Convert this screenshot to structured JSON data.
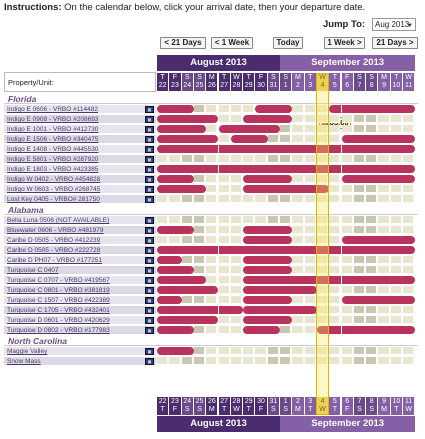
{
  "instructions": {
    "label": "Instructions:",
    "text": "On the calendar below, click your arrival date, then your departure date."
  },
  "jump": {
    "label": "Jump To:",
    "selected": "Aug 2013"
  },
  "nav": {
    "prev_21": "< 21 Days",
    "prev_week": "< 1 Week",
    "today": "Today",
    "next_week": "1 Week >",
    "next_21": "21 Days >"
  },
  "months": [
    "August 2013",
    "September 2013"
  ],
  "property_header": "Property/Unit:",
  "tooltip_price": "$285.00",
  "days": [
    {
      "dow": "T",
      "d": "22"
    },
    {
      "dow": "F",
      "d": "23"
    },
    {
      "dow": "S",
      "d": "24"
    },
    {
      "dow": "S",
      "d": "25"
    },
    {
      "dow": "M",
      "d": "26"
    },
    {
      "dow": "T",
      "d": "27"
    },
    {
      "dow": "W",
      "d": "28"
    },
    {
      "dow": "T",
      "d": "29"
    },
    {
      "dow": "F",
      "d": "30"
    },
    {
      "dow": "S",
      "d": "31"
    },
    {
      "dow": "S",
      "d": "1"
    },
    {
      "dow": "M",
      "d": "2"
    },
    {
      "dow": "T",
      "d": "3"
    },
    {
      "dow": "W",
      "d": "4"
    },
    {
      "dow": "T",
      "d": "5"
    },
    {
      "dow": "F",
      "d": "6"
    },
    {
      "dow": "S",
      "d": "7"
    },
    {
      "dow": "S",
      "d": "8"
    },
    {
      "dow": "M",
      "d": "9"
    },
    {
      "dow": "T",
      "d": "10"
    },
    {
      "dow": "W",
      "d": "11"
    }
  ],
  "regions": [
    {
      "name": "Florida",
      "properties": [
        {
          "name": "Indigo E 0606 - VRBO #114482",
          "booked": [
            [
              0,
              2
            ],
            [
              8,
              10
            ],
            [
              14,
              20
            ]
          ]
        },
        {
          "name": "Indigo E 0908 - VRBO #208693",
          "booked": [
            [
              0,
              4
            ],
            [
              7,
              10
            ]
          ]
        },
        {
          "name": "Indigo E 1001 - VRBO #412730",
          "booked": [
            [
              0,
              3
            ],
            [
              5,
              9
            ]
          ]
        },
        {
          "name": "Indigo E 1506 - VRBO #340475",
          "booked": [
            [
              0,
              4
            ],
            [
              6,
              8
            ],
            [
              15,
              20
            ]
          ]
        },
        {
          "name": "Indigo E 1408 - VRBO #445530",
          "booked": [
            [
              0,
              20
            ]
          ]
        },
        {
          "name": "Indigo E 5801 - VRBO #287920",
          "booked": []
        },
        {
          "name": "Indigo E 1803 - VRBO #423385",
          "booked": [
            [
              0,
              20
            ]
          ]
        },
        {
          "name": "Indigo W 0402 - VRBO #454828",
          "booked": [
            [
              0,
              2
            ],
            [
              7,
              10
            ],
            [
              15,
              20
            ]
          ]
        },
        {
          "name": "Indigo W 0603 - VRBO #268745",
          "booked": [
            [
              0,
              3
            ],
            [
              7,
              13
            ]
          ]
        },
        {
          "name": "Lost Key 0405 - VRBO# 281750",
          "booked": []
        }
      ]
    },
    {
      "name": "Alabama",
      "properties": [
        {
          "name": "Bella Luna 0506 (NOT AVAILABLE)",
          "booked": []
        },
        {
          "name": "Bluewater 0606 - VRBO #481979",
          "booked": [
            [
              0,
              2
            ],
            [
              7,
              10
            ]
          ]
        },
        {
          "name": "Caribe D 0505 - VRBO #412239",
          "booked": [
            [
              7,
              10
            ],
            [
              15,
              20
            ]
          ]
        },
        {
          "name": "Caribe D 0505 - VRBO #222728",
          "booked": [
            [
              0,
              20
            ]
          ]
        },
        {
          "name": "Caribe D PH07 - VRBO #177251",
          "booked": [
            [
              0,
              1
            ],
            [
              7,
              10
            ]
          ]
        },
        {
          "name": "Turquoise C 0407",
          "booked": [
            [
              0,
              2
            ],
            [
              7,
              10
            ]
          ]
        },
        {
          "name": "Turquoise C 0707 - VRBO #419567",
          "booked": [
            [
              0,
              3
            ],
            [
              7,
              20
            ]
          ]
        },
        {
          "name": "Turquoise C 0801 - VRBO #381819",
          "booked": [
            [
              0,
              4
            ],
            [
              7,
              12
            ]
          ]
        },
        {
          "name": "Turquoise C 1507 - VRBO #422389",
          "booked": [
            [
              0,
              1
            ],
            [
              7,
              10
            ],
            [
              15,
              20
            ]
          ]
        },
        {
          "name": "Turquoise C 1705 - VRBO #432401",
          "booked": [
            [
              0,
              6
            ],
            [
              7,
              12
            ]
          ]
        },
        {
          "name": "Turquoise D 0601 - VRBO #420629",
          "booked": [
            [
              0,
              4
            ],
            [
              7,
              10
            ]
          ]
        },
        {
          "name": "Turquoise D 0802 - VRBO #177983",
          "booked": [
            [
              0,
              2
            ],
            [
              7,
              9
            ],
            [
              13,
              20
            ]
          ]
        }
      ]
    },
    {
      "name": "North Carolina",
      "properties": [
        {
          "name": "Maggie Valley",
          "booked": [
            [
              0,
              2
            ]
          ]
        },
        {
          "name": "Snow Mass",
          "booked": []
        }
      ]
    }
  ]
}
